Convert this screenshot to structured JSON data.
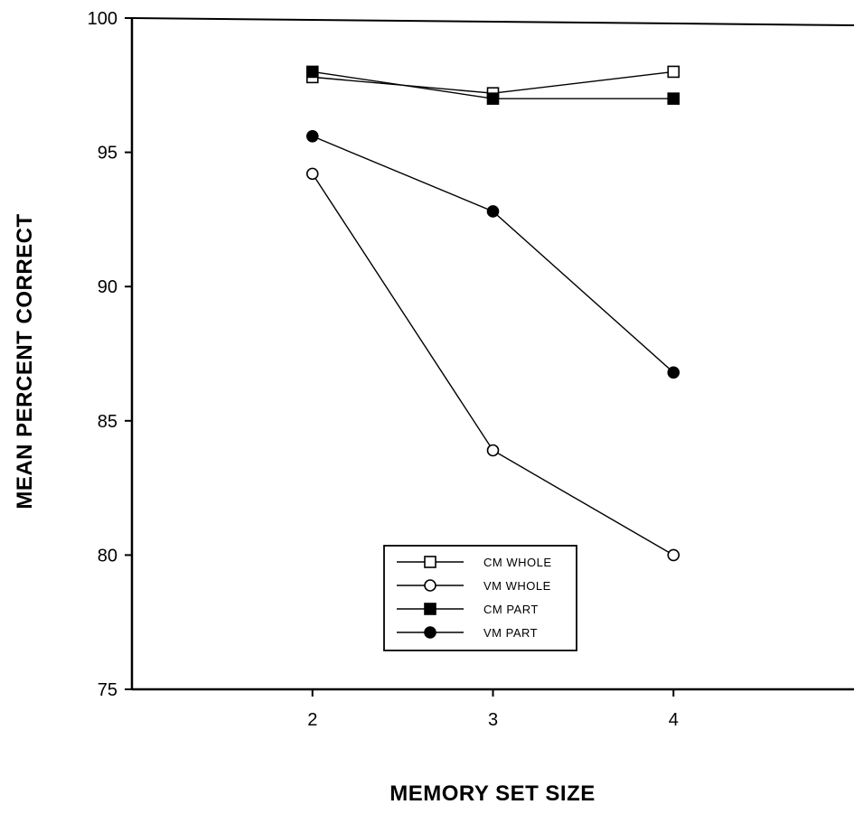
{
  "chart_data": {
    "type": "line",
    "title": "",
    "xlabel": "MEMORY SET SIZE",
    "ylabel": "MEAN PERCENT CORRECT",
    "x": [
      2,
      3,
      4
    ],
    "xlim": [
      1,
      5
    ],
    "ylim": [
      75,
      100
    ],
    "xticks": [
      2,
      3,
      4
    ],
    "yticks": [
      75,
      80,
      85,
      90,
      95,
      100
    ],
    "grid": false,
    "legend_position": "bottom-center",
    "series": [
      {
        "name": "CM WHOLE",
        "marker": "open-square",
        "values": [
          97.8,
          97.2,
          98.0
        ]
      },
      {
        "name": "VM WHOLE",
        "marker": "open-circle",
        "values": [
          94.2,
          83.9,
          80.0
        ]
      },
      {
        "name": "CM PART",
        "marker": "filled-square",
        "values": [
          98.0,
          97.0,
          97.0
        ]
      },
      {
        "name": "VM PART",
        "marker": "filled-circle",
        "values": [
          95.6,
          92.8,
          86.8
        ]
      }
    ]
  }
}
